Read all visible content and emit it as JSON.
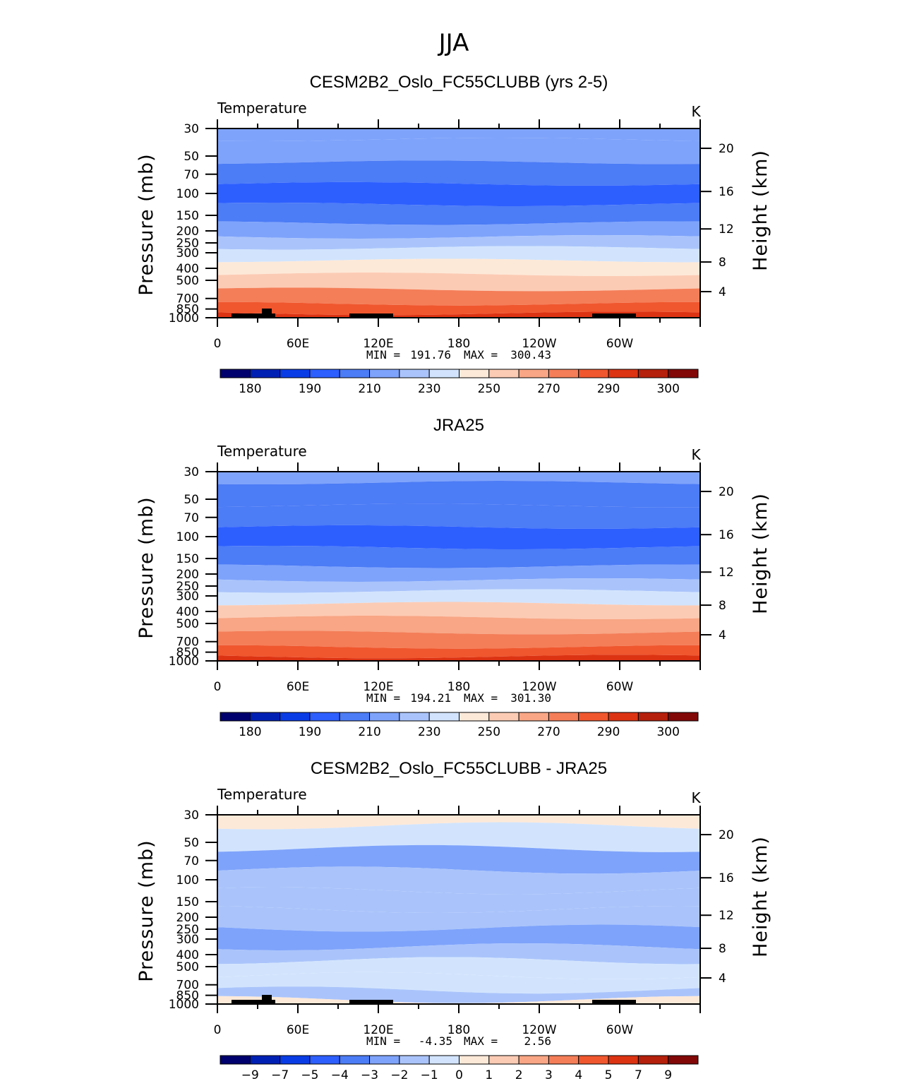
{
  "figure": {
    "title": "JJA"
  },
  "colors": {
    "abs_palette": [
      "#00006e",
      "#0020b4",
      "#0a3ce6",
      "#2d5fff",
      "#4c7cf6",
      "#7ea3fb",
      "#aac4fb",
      "#d2e4fd",
      "#fde9d8",
      "#fccbb4",
      "#f8a685",
      "#f47e58",
      "#f0572e",
      "#dc3313",
      "#b4200c",
      "#820808"
    ],
    "diff_palette": [
      "#00006e",
      "#0020b4",
      "#0a3ce6",
      "#2d5fff",
      "#4c7cf6",
      "#7ea3fb",
      "#aac4fb",
      "#d2e4fd",
      "#fde9d8",
      "#fccbb4",
      "#f8a685",
      "#f47e58",
      "#f0572e",
      "#dc3313",
      "#b4200c",
      "#820808"
    ],
    "topography": "#000000"
  },
  "chart_data": [
    {
      "type": "heatmap",
      "title": "CESM2B2_Oslo_FC55CLUBB (yrs 2-5)",
      "variable_label": "Temperature",
      "units": "K",
      "ylabel": "Pressure (mb)",
      "ylabel_right": "Height (km)",
      "x_ticks": [
        "0",
        "60E",
        "120E",
        "180",
        "120W",
        "60W"
      ],
      "y_ticks": [
        "30",
        "50",
        "70",
        "100",
        "150",
        "200",
        "250",
        "300",
        "400",
        "500",
        "700",
        "850",
        "1000"
      ],
      "y_ticks_right": [
        "20",
        "16",
        "12",
        "8",
        "4"
      ],
      "stats": {
        "min": "191.76",
        "max": "300.43"
      },
      "min_label": "MIN =",
      "max_label": "MAX =",
      "colorbar_labels": [
        "180",
        "190",
        "210",
        "230",
        "250",
        "270",
        "290",
        "300"
      ],
      "levels_by_pressure": [
        {
          "p": 30,
          "v": 214
        },
        {
          "p": 45,
          "v": 211
        },
        {
          "p": 70,
          "v": 205
        },
        {
          "p": 100,
          "v": 197
        },
        {
          "p": 150,
          "v": 207
        },
        {
          "p": 200,
          "v": 215
        },
        {
          "p": 250,
          "v": 222
        },
        {
          "p": 300,
          "v": 232
        },
        {
          "p": 400,
          "v": 249
        },
        {
          "p": 500,
          "v": 259
        },
        {
          "p": 700,
          "v": 277
        },
        {
          "p": 850,
          "v": 287
        },
        {
          "p": 1000,
          "v": 293
        }
      ]
    },
    {
      "type": "heatmap",
      "title": "JRA25",
      "variable_label": "Temperature",
      "units": "K",
      "ylabel": "Pressure (mb)",
      "ylabel_right": "Height (km)",
      "x_ticks": [
        "0",
        "60E",
        "120E",
        "180",
        "120W",
        "60W"
      ],
      "y_ticks": [
        "30",
        "50",
        "70",
        "100",
        "150",
        "200",
        "250",
        "300",
        "400",
        "500",
        "700",
        "850",
        "1000"
      ],
      "y_ticks_right": [
        "20",
        "16",
        "12",
        "8",
        "4"
      ],
      "stats": {
        "min": "194.21",
        "max": "301.30"
      },
      "min_label": "MIN =",
      "max_label": "MAX =",
      "colorbar_labels": [
        "180",
        "190",
        "210",
        "230",
        "250",
        "270",
        "290",
        "300"
      ],
      "levels_by_pressure": [
        {
          "p": 30,
          "v": 213
        },
        {
          "p": 45,
          "v": 208
        },
        {
          "p": 70,
          "v": 203
        },
        {
          "p": 100,
          "v": 198
        },
        {
          "p": 150,
          "v": 208
        },
        {
          "p": 200,
          "v": 216
        },
        {
          "p": 250,
          "v": 223
        },
        {
          "p": 300,
          "v": 233
        },
        {
          "p": 400,
          "v": 250
        },
        {
          "p": 500,
          "v": 260
        },
        {
          "p": 700,
          "v": 278
        },
        {
          "p": 850,
          "v": 288
        },
        {
          "p": 1000,
          "v": 294
        }
      ]
    },
    {
      "type": "heatmap",
      "title": "CESM2B2_Oslo_FC55CLUBB - JRA25",
      "variable_label": "Temperature",
      "units": "K",
      "ylabel": "Pressure (mb)",
      "ylabel_right": "Height (km)",
      "x_ticks": [
        "0",
        "60E",
        "120E",
        "180",
        "120W",
        "60W"
      ],
      "y_ticks": [
        "30",
        "50",
        "70",
        "100",
        "150",
        "200",
        "250",
        "300",
        "400",
        "500",
        "700",
        "850",
        "1000"
      ],
      "y_ticks_right": [
        "20",
        "16",
        "12",
        "8",
        "4"
      ],
      "stats": {
        "min": "-4.35",
        "max": "2.56"
      },
      "min_label": "MIN =",
      "max_label": "MAX =",
      "colorbar_labels": [
        "−9",
        "−7",
        "−5",
        "−4",
        "−3",
        "−2",
        "−1",
        "0",
        "1",
        "2",
        "3",
        "4",
        "5",
        "7",
        "9"
      ],
      "levels_by_pressure": [
        {
          "p": 30,
          "v": 0.5
        },
        {
          "p": 45,
          "v": -0.6
        },
        {
          "p": 70,
          "v": -2.4
        },
        {
          "p": 100,
          "v": -1.8
        },
        {
          "p": 150,
          "v": -1.5
        },
        {
          "p": 200,
          "v": -1.6
        },
        {
          "p": 300,
          "v": -2.2
        },
        {
          "p": 400,
          "v": -1.5
        },
        {
          "p": 500,
          "v": -0.7
        },
        {
          "p": 700,
          "v": -0.5
        },
        {
          "p": 850,
          "v": -1.2
        },
        {
          "p": 1000,
          "v": 0.3
        }
      ]
    }
  ]
}
